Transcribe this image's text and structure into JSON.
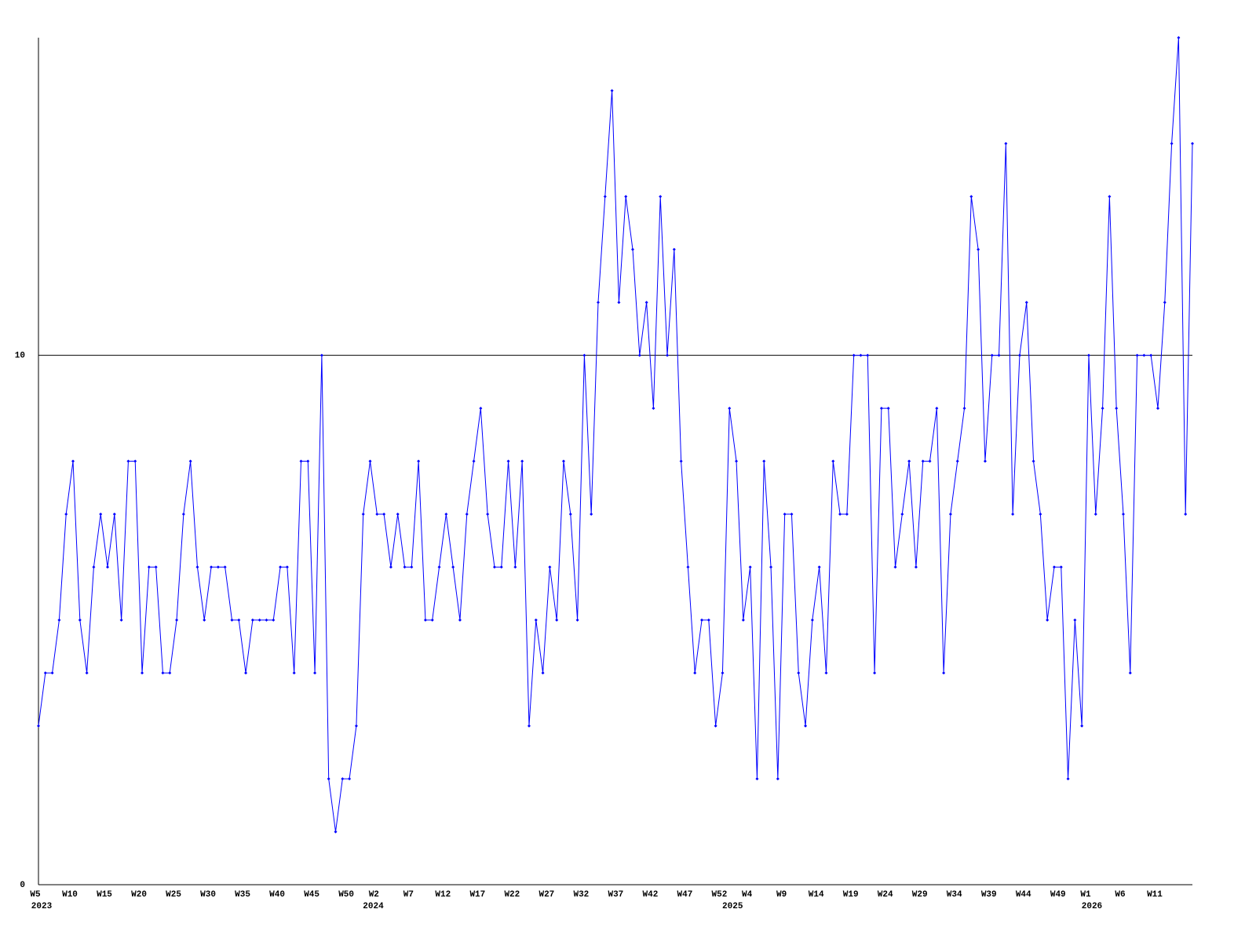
{
  "chart_data": {
    "type": "line",
    "color": "#0000ff",
    "ylim": [
      0,
      16
    ],
    "yticks": [
      0,
      10
    ],
    "grid": true,
    "values": [
      3,
      4,
      4,
      5,
      7,
      8,
      5,
      4,
      6,
      7,
      6,
      7,
      5,
      8,
      8,
      4,
      6,
      6,
      4,
      4,
      5,
      7,
      8,
      6,
      5,
      6,
      6,
      6,
      5,
      5,
      4,
      5,
      5,
      5,
      5,
      6,
      6,
      4,
      8,
      8,
      4,
      10,
      2,
      1,
      2,
      2,
      3,
      7,
      8,
      7,
      7,
      6,
      7,
      6,
      6,
      8,
      5,
      5,
      6,
      7,
      6,
      5,
      7,
      8,
      9,
      7,
      6,
      6,
      8,
      6,
      8,
      3,
      5,
      4,
      6,
      5,
      8,
      7,
      5,
      10,
      7,
      11,
      13,
      15,
      11,
      13,
      12,
      10,
      11,
      9,
      13,
      10,
      12,
      8,
      6,
      4,
      5,
      5,
      3,
      4,
      9,
      8,
      5,
      6,
      2,
      8,
      6,
      2,
      7,
      7,
      4,
      3,
      5,
      6,
      4,
      8,
      7,
      7,
      10,
      10,
      10,
      4,
      9,
      9,
      6,
      7,
      8,
      6,
      8,
      8,
      9,
      4,
      7,
      8,
      9,
      13,
      12,
      8,
      10,
      10,
      14,
      7,
      10,
      11,
      8,
      7,
      5,
      6,
      6,
      2,
      5,
      3,
      10,
      7,
      9,
      13,
      9,
      7,
      4,
      10,
      10,
      10,
      9,
      11,
      14,
      16,
      7,
      14
    ],
    "categories": [
      "W5",
      null,
      null,
      null,
      null,
      "W10",
      null,
      null,
      null,
      null,
      "W15",
      null,
      null,
      null,
      null,
      "W20",
      null,
      null,
      null,
      null,
      "W25",
      null,
      null,
      null,
      null,
      "W30",
      null,
      null,
      null,
      null,
      "W35",
      null,
      null,
      null,
      null,
      "W40",
      null,
      null,
      null,
      null,
      "W45",
      null,
      null,
      null,
      null,
      "W50",
      null,
      null,
      null,
      "W2",
      null,
      null,
      null,
      null,
      "W7",
      null,
      null,
      null,
      null,
      "W12",
      null,
      null,
      null,
      null,
      "W17",
      null,
      null,
      null,
      null,
      "W22",
      null,
      null,
      null,
      null,
      "W27",
      null,
      null,
      null,
      null,
      "W32",
      null,
      null,
      null,
      null,
      "W37",
      null,
      null,
      null,
      null,
      "W42",
      null,
      null,
      null,
      null,
      "W47",
      null,
      null,
      null,
      null,
      "W52",
      null,
      null,
      null,
      "W4",
      null,
      null,
      null,
      null,
      "W9",
      null,
      null,
      null,
      null,
      "W14",
      null,
      null,
      null,
      null,
      "W19",
      null,
      null,
      null,
      null,
      "W24",
      null,
      null,
      null,
      null,
      "W29",
      null,
      null,
      null,
      null,
      "W34",
      null,
      null,
      null,
      null,
      "W39",
      null,
      null,
      null,
      null,
      "W44",
      null,
      null,
      null,
      null,
      "W49",
      null,
      null,
      null,
      "W1",
      null,
      null,
      null,
      null,
      "W6",
      null,
      null,
      null,
      null,
      "W11",
      null,
      null,
      null,
      null,
      null
    ],
    "category_years": [
      "2023",
      null,
      null,
      null,
      null,
      null,
      null,
      null,
      null,
      null,
      null,
      null,
      null,
      null,
      null,
      null,
      null,
      null,
      null,
      null,
      null,
      null,
      null,
      null,
      null,
      null,
      null,
      null,
      null,
      null,
      null,
      null,
      null,
      null,
      null,
      null,
      null,
      null,
      null,
      null,
      null,
      null,
      null,
      null,
      null,
      null,
      null,
      null,
      "2024",
      null,
      null,
      null,
      null,
      null,
      null,
      null,
      null,
      null,
      null,
      null,
      null,
      null,
      null,
      null,
      null,
      null,
      null,
      null,
      null,
      null,
      null,
      null,
      null,
      null,
      null,
      null,
      null,
      null,
      null,
      null,
      null,
      null,
      null,
      null,
      null,
      null,
      null,
      null,
      null,
      null,
      null,
      null,
      null,
      null,
      null,
      null,
      null,
      null,
      null,
      null,
      "2025",
      null,
      null,
      null,
      null,
      null,
      null,
      null,
      null,
      null,
      null,
      null,
      null,
      null,
      null,
      null,
      null,
      null,
      null,
      null,
      null,
      null,
      null,
      null,
      null,
      null,
      null,
      null,
      null,
      null,
      null,
      null,
      null,
      null,
      null,
      null,
      null,
      null,
      null,
      null,
      null,
      null,
      null,
      null,
      null,
      null,
      null,
      null,
      null,
      null,
      null,
      null,
      "2026",
      null,
      null,
      null,
      null,
      null,
      null,
      null,
      null,
      null,
      null,
      null,
      null,
      null,
      null,
      null
    ]
  }
}
